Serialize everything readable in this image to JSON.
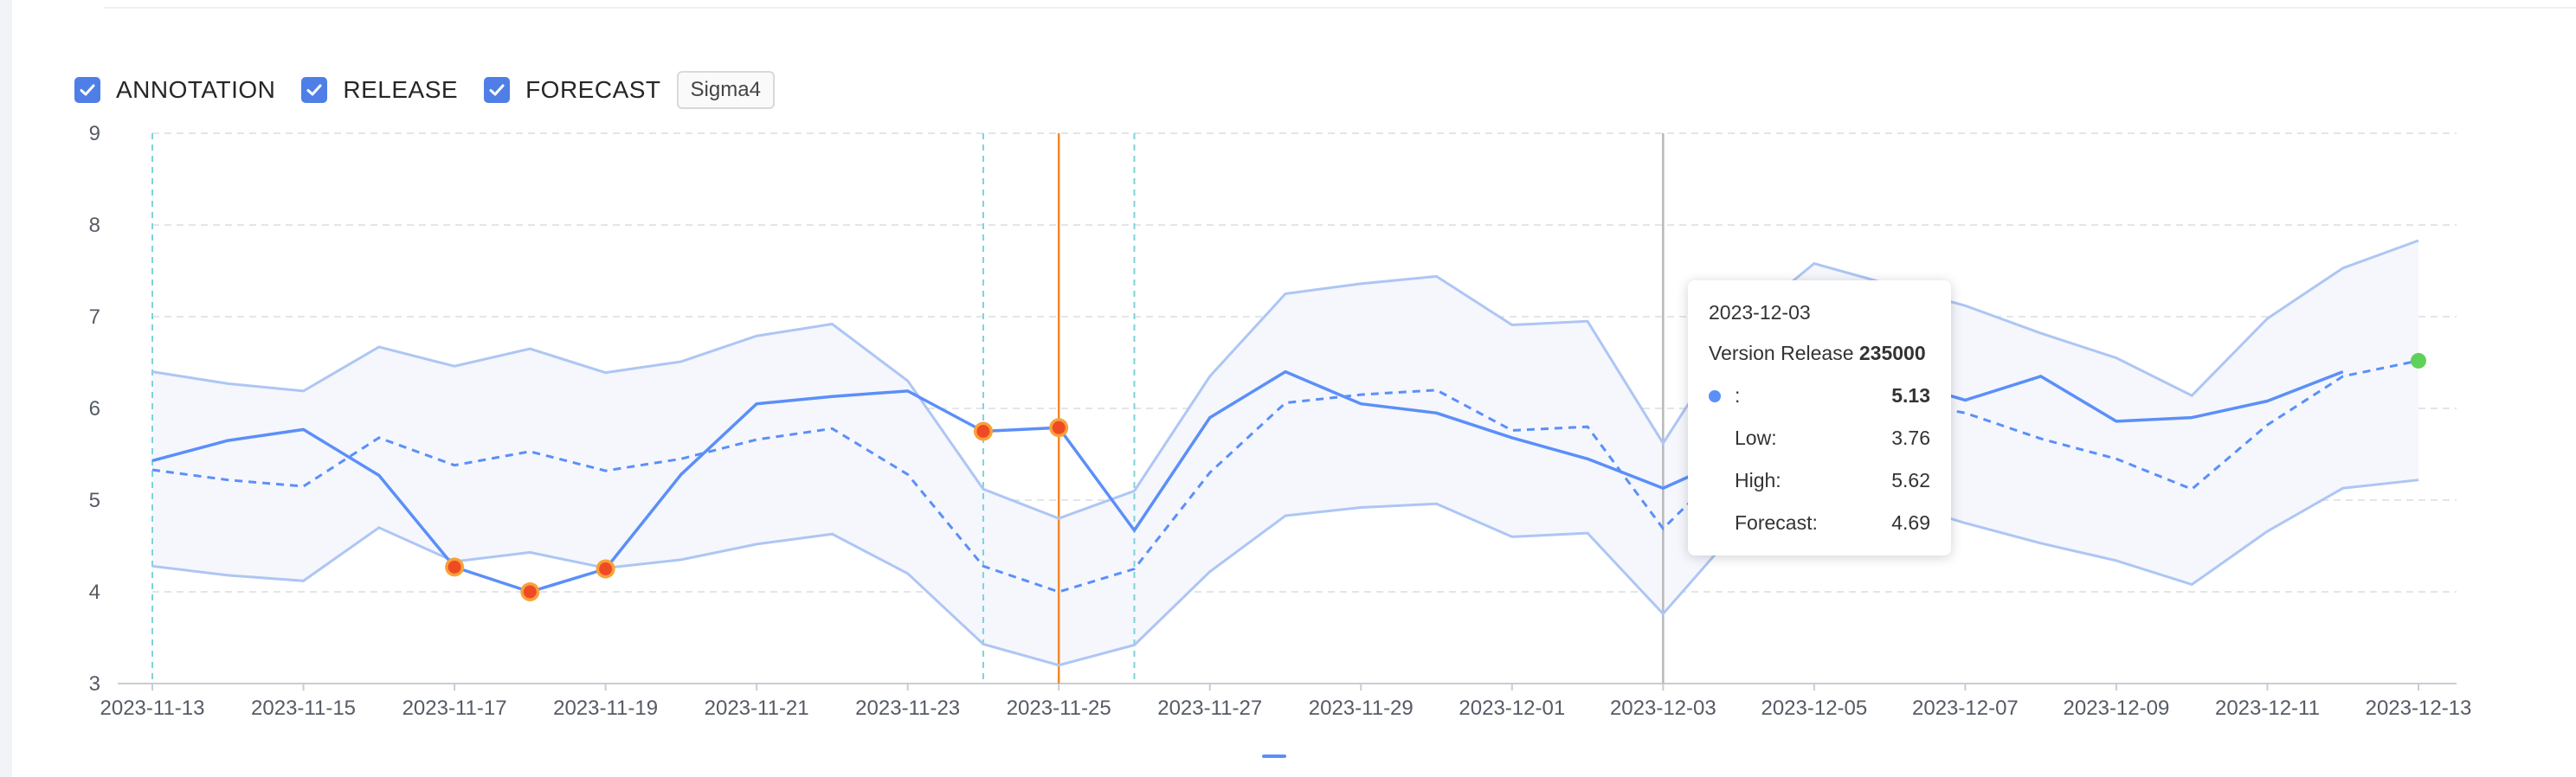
{
  "controls": {
    "checkboxes": [
      {
        "label": "ANNOTATION",
        "checked": true
      },
      {
        "label": "RELEASE",
        "checked": true
      },
      {
        "label": "FORECAST",
        "checked": true
      }
    ],
    "button_label": "Sigma4"
  },
  "tooltip": {
    "date": "2023-12-03",
    "subtitle_prefix": "Version Release",
    "subtitle_value": "235000",
    "rows": [
      {
        "name": ":",
        "value": "5.13",
        "marker": true,
        "bold": true
      },
      {
        "name": "Low:",
        "value": "3.76"
      },
      {
        "name": "High:",
        "value": "5.62"
      },
      {
        "name": "Forecast:",
        "value": "4.69"
      }
    ]
  },
  "colors": {
    "actual": "#5b8ff9",
    "band": "#adc6f4",
    "band_fill": "#f5f7fd",
    "anomaly": "#f04a24",
    "anomaly_ring": "#f7a23a",
    "release_line": "#f0892c",
    "annotation_line": "#7dd3d8",
    "cursor_line": "#b8b8b8",
    "forecast_end": "#5fd15a",
    "checkbox": "#4f7fe6"
  },
  "chart_data": {
    "type": "line",
    "x": [
      "2023-11-13",
      "2023-11-14",
      "2023-11-15",
      "2023-11-16",
      "2023-11-17",
      "2023-11-18",
      "2023-11-19",
      "2023-11-20",
      "2023-11-21",
      "2023-11-22",
      "2023-11-23",
      "2023-11-24",
      "2023-11-25",
      "2023-11-26",
      "2023-11-27",
      "2023-11-28",
      "2023-11-29",
      "2023-11-30",
      "2023-12-01",
      "2023-12-02",
      "2023-12-03",
      "2023-12-04",
      "2023-12-05",
      "2023-12-06",
      "2023-12-07",
      "2023-12-08",
      "2023-12-09",
      "2023-12-10",
      "2023-12-11",
      "2023-12-12",
      "2023-12-13"
    ],
    "x_tick_labels": [
      "2023-11-13",
      "2023-11-15",
      "2023-11-17",
      "2023-11-19",
      "2023-11-21",
      "2023-11-23",
      "2023-11-25",
      "2023-11-27",
      "2023-11-29",
      "2023-12-01",
      "2023-12-03",
      "2023-12-05",
      "2023-12-07",
      "2023-12-09",
      "2023-12-11",
      "2023-12-13"
    ],
    "ylim": [
      3,
      9
    ],
    "y_ticks": [
      3,
      4,
      5,
      6,
      7,
      8,
      9
    ],
    "grid": true,
    "series": [
      {
        "key": "actual",
        "values": [
          5.43,
          5.65,
          5.77,
          5.27,
          4.27,
          4.0,
          4.25,
          5.28,
          6.05,
          6.13,
          6.19,
          5.75,
          5.79,
          4.67,
          5.9,
          6.4,
          6.05,
          5.95,
          5.68,
          5.45,
          5.13,
          5.5,
          6.4,
          6.33,
          6.09,
          6.35,
          5.86,
          5.9,
          6.08,
          6.4,
          null
        ]
      },
      {
        "key": "forecast",
        "values": [
          5.33,
          5.22,
          5.15,
          5.68,
          5.38,
          5.53,
          5.32,
          5.45,
          5.66,
          5.78,
          5.28,
          4.28,
          4.0,
          4.25,
          5.3,
          6.06,
          6.15,
          6.2,
          5.76,
          5.8,
          4.69,
          5.5,
          6.0,
          6.1,
          5.95,
          5.67,
          5.45,
          5.12,
          5.82,
          6.35,
          6.52
        ]
      },
      {
        "key": "high",
        "values": [
          6.4,
          6.27,
          6.19,
          6.67,
          6.46,
          6.65,
          6.39,
          6.51,
          6.79,
          6.92,
          6.3,
          5.12,
          4.8,
          5.1,
          6.35,
          7.25,
          7.36,
          7.44,
          6.91,
          6.95,
          5.62,
          6.9,
          7.58,
          7.35,
          7.12,
          6.82,
          6.55,
          6.14,
          6.98,
          7.53,
          7.83
        ]
      },
      {
        "key": "low",
        "values": [
          4.28,
          4.18,
          4.12,
          4.7,
          4.33,
          4.43,
          4.26,
          4.35,
          4.52,
          4.63,
          4.2,
          3.43,
          3.2,
          3.42,
          4.22,
          4.83,
          4.92,
          4.96,
          4.6,
          4.64,
          3.76,
          4.7,
          5.2,
          5.0,
          4.75,
          4.53,
          4.34,
          4.08,
          4.66,
          5.13,
          5.22
        ]
      }
    ],
    "anomalies": [
      "2023-11-17",
      "2023-11-18",
      "2023-11-19",
      "2023-11-24",
      "2023-11-25"
    ],
    "annotation_dates": [
      "2023-11-13",
      "2023-11-24",
      "2023-11-26"
    ],
    "release_date": "2023-11-25",
    "cursor_date": "2023-12-03"
  }
}
